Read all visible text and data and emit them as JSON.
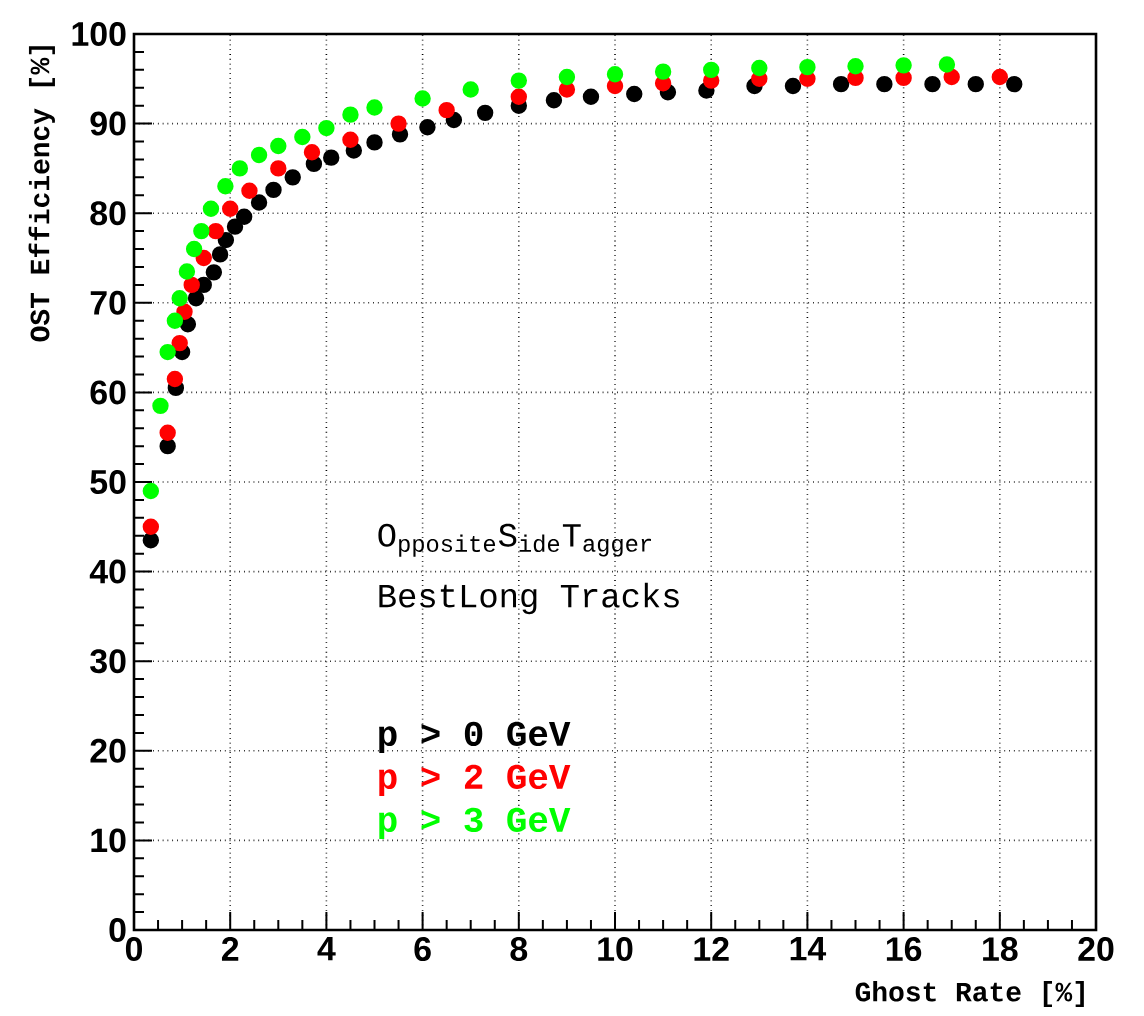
{
  "chart_data": {
    "type": "scatter",
    "xlabel": "Ghost Rate [%]",
    "ylabel": "OST Efficiency [%]",
    "xlim": [
      0,
      20
    ],
    "ylim": [
      0,
      100
    ],
    "xticks": [
      0,
      2,
      4,
      6,
      8,
      10,
      12,
      14,
      16,
      18,
      20
    ],
    "yticks": [
      0,
      10,
      20,
      30,
      40,
      50,
      60,
      70,
      80,
      90,
      100
    ],
    "grid": true,
    "marker": "circle",
    "annotations": [
      "O$_{pposite}$S$_{ide}$T$_{agger}$",
      "BestLong Tracks"
    ],
    "series": [
      {
        "name": "p > 0 GeV",
        "color": "#000000",
        "x": [
          0.35,
          0.7,
          0.87,
          1.0,
          1.12,
          1.29,
          1.45,
          1.66,
          1.79,
          1.91,
          2.1,
          2.29,
          2.6,
          2.9,
          3.3,
          3.74,
          4.1,
          4.57,
          5.0,
          5.53,
          6.1,
          6.65,
          7.3,
          8.0,
          8.73,
          9.5,
          10.4,
          11.1,
          11.9,
          12.9,
          13.7,
          14.7,
          15.6,
          16.6,
          17.5,
          18.3
        ],
        "values": [
          43.5,
          54,
          60.5,
          64.5,
          67.6,
          70.5,
          72,
          73.4,
          75.4,
          77,
          78.5,
          79.6,
          81.2,
          82.6,
          84,
          85.5,
          86.2,
          87,
          87.9,
          88.8,
          89.6,
          90.4,
          91.2,
          92,
          92.6,
          93,
          93.3,
          93.5,
          93.7,
          94.2,
          94.2,
          94.4,
          94.4,
          94.4,
          94.4,
          94.4
        ]
      },
      {
        "name": "p > 2 GeV",
        "color": "#ff0000",
        "x": [
          0.35,
          0.7,
          0.85,
          0.95,
          1.05,
          1.2,
          1.45,
          1.7,
          2.0,
          2.4,
          3.0,
          3.7,
          4.5,
          5.5,
          6.5,
          8.0,
          9.0,
          10.0,
          11.0,
          12.0,
          13.0,
          14.0,
          15.0,
          16.0,
          17.0,
          18.0
        ],
        "values": [
          45,
          55.5,
          61.5,
          65.5,
          69,
          72,
          75,
          78,
          80.5,
          82.5,
          85,
          86.8,
          88.2,
          90,
          91.5,
          93,
          93.8,
          94.2,
          94.5,
          94.8,
          95,
          95,
          95.1,
          95.1,
          95.2,
          95.2
        ]
      },
      {
        "name": "p > 3 GeV",
        "color": "#00ff00",
        "x": [
          0.35,
          0.55,
          0.7,
          0.85,
          0.95,
          1.1,
          1.25,
          1.4,
          1.6,
          1.9,
          2.2,
          2.6,
          3.0,
          3.5,
          4.0,
          4.5,
          5.0,
          6.0,
          7.0,
          8.0,
          9.0,
          10.0,
          11.0,
          12.0,
          13.0,
          14.0,
          15.0,
          16.0,
          16.9
        ],
        "values": [
          49,
          58.5,
          64.5,
          68,
          70.5,
          73.5,
          76,
          78,
          80.5,
          83,
          85,
          86.5,
          87.5,
          88.5,
          89.5,
          91,
          91.8,
          92.8,
          93.8,
          94.8,
          95.2,
          95.5,
          95.8,
          96,
          96.2,
          96.3,
          96.4,
          96.5,
          96.6
        ]
      }
    ]
  }
}
